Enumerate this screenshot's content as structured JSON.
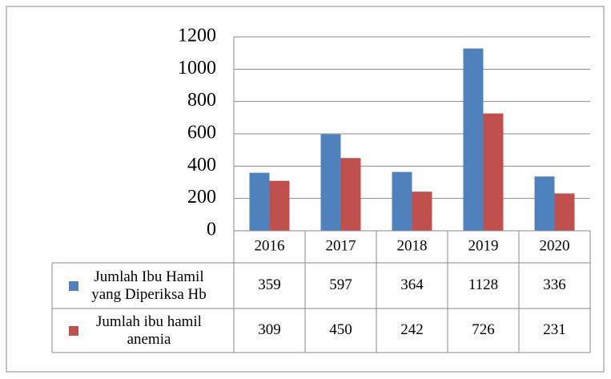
{
  "chart_data": {
    "type": "bar",
    "categories": [
      "2016",
      "2017",
      "2018",
      "2019",
      "2020"
    ],
    "series": [
      {
        "name": "Jumlah Ibu Hamil yang Diperiksa Hb",
        "color": "#4f81bd",
        "values": [
          359,
          597,
          364,
          1128,
          336
        ]
      },
      {
        "name": "Jumlah ibu hamil anemia",
        "color": "#c0504d",
        "values": [
          309,
          450,
          242,
          726,
          231
        ]
      }
    ],
    "ylim": [
      0,
      1200
    ],
    "yticks": [
      0,
      200,
      400,
      600,
      800,
      1000,
      1200
    ],
    "grid": true
  }
}
